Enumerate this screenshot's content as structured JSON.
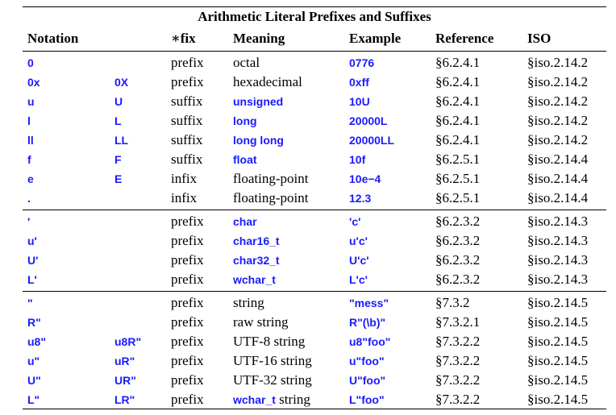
{
  "title": "Arithmetic Literal Prefixes and Suffixes",
  "headers": [
    "Notation",
    "",
    "∗fix",
    "Meaning",
    "Example",
    "Reference",
    "ISO"
  ],
  "groups": [
    [
      {
        "n1": "0",
        "n2": "",
        "fix": "prefix",
        "meaning": "octal",
        "meaning_code": "",
        "meaning_suffix": "",
        "example": "0776",
        "ref": "§6.2.4.1",
        "iso": "§iso.2.14.2"
      },
      {
        "n1": "0x",
        "n2": "0X",
        "fix": "prefix",
        "meaning": "hexadecimal",
        "meaning_code": "",
        "meaning_suffix": "",
        "example": "0xff",
        "ref": "§6.2.4.1",
        "iso": "§iso.2.14.2"
      },
      {
        "n1": "u",
        "n2": "U",
        "fix": "suffix",
        "meaning": "",
        "meaning_code": "unsigned",
        "meaning_suffix": "",
        "example": "10U",
        "ref": "§6.2.4.1",
        "iso": "§iso.2.14.2"
      },
      {
        "n1": "l",
        "n2": "L",
        "fix": "suffix",
        "meaning": "",
        "meaning_code": "long",
        "meaning_suffix": "",
        "example": "20000L",
        "ref": "§6.2.4.1",
        "iso": "§iso.2.14.2"
      },
      {
        "n1": "ll",
        "n2": "LL",
        "fix": "suffix",
        "meaning": "",
        "meaning_code": "long long",
        "meaning_suffix": "",
        "example": "20000LL",
        "ref": "§6.2.4.1",
        "iso": "§iso.2.14.2"
      },
      {
        "n1": "f",
        "n2": "F",
        "fix": "suffix",
        "meaning": "",
        "meaning_code": "float",
        "meaning_suffix": "",
        "example": "10f",
        "ref": "§6.2.5.1",
        "iso": "§iso.2.14.4"
      },
      {
        "n1": "e",
        "n2": "E",
        "fix": "infix",
        "meaning": "floating-point",
        "meaning_code": "",
        "meaning_suffix": "",
        "example": "10e−4",
        "ref": "§6.2.5.1",
        "iso": "§iso.2.14.4"
      },
      {
        "n1": ".",
        "n2": "",
        "fix": "infix",
        "meaning": "floating-point",
        "meaning_code": "",
        "meaning_suffix": "",
        "example": "12.3",
        "ref": "§6.2.5.1",
        "iso": "§iso.2.14.4"
      }
    ],
    [
      {
        "n1": "'",
        "n2": "",
        "fix": "prefix",
        "meaning": "",
        "meaning_code": "char",
        "meaning_suffix": "",
        "example": "'c'",
        "ref": "§6.2.3.2",
        "iso": "§iso.2.14.3"
      },
      {
        "n1": "u'",
        "n2": "",
        "fix": "prefix",
        "meaning": "",
        "meaning_code": "char16_t",
        "meaning_suffix": "",
        "example": "u'c'",
        "ref": "§6.2.3.2",
        "iso": "§iso.2.14.3"
      },
      {
        "n1": "U'",
        "n2": "",
        "fix": "prefix",
        "meaning": "",
        "meaning_code": "char32_t",
        "meaning_suffix": "",
        "example": "U'c'",
        "ref": "§6.2.3.2",
        "iso": "§iso.2.14.3"
      },
      {
        "n1": "L'",
        "n2": "",
        "fix": "prefix",
        "meaning": "",
        "meaning_code": "wchar_t",
        "meaning_suffix": "",
        "example": "L'c'",
        "ref": "§6.2.3.2",
        "iso": "§iso.2.14.3"
      }
    ],
    [
      {
        "n1": "\"",
        "n2": "",
        "fix": "prefix",
        "meaning": "string",
        "meaning_code": "",
        "meaning_suffix": "",
        "example": "\"mess\"",
        "ref": "§7.3.2",
        "iso": "§iso.2.14.5"
      },
      {
        "n1": "R\"",
        "n2": "",
        "fix": "prefix",
        "meaning": "raw string",
        "meaning_code": "",
        "meaning_suffix": "",
        "example": "R\"(\\b)\"",
        "ref": "§7.3.2.1",
        "iso": "§iso.2.14.5"
      },
      {
        "n1": "u8\"",
        "n2": "u8R\"",
        "fix": "prefix",
        "meaning": "UTF-8 string",
        "meaning_code": "",
        "meaning_suffix": "",
        "example": "u8\"foo\"",
        "ref": "§7.3.2.2",
        "iso": "§iso.2.14.5"
      },
      {
        "n1": "u\"",
        "n2": "uR\"",
        "fix": "prefix",
        "meaning": "UTF-16 string",
        "meaning_code": "",
        "meaning_suffix": "",
        "example": "u\"foo\"",
        "ref": "§7.3.2.2",
        "iso": "§iso.2.14.5"
      },
      {
        "n1": "U\"",
        "n2": "UR\"",
        "fix": "prefix",
        "meaning": "UTF-32 string",
        "meaning_code": "",
        "meaning_suffix": "",
        "example": "U\"foo\"",
        "ref": "§7.3.2.2",
        "iso": "§iso.2.14.5"
      },
      {
        "n1": "L\"",
        "n2": "LR\"",
        "fix": "prefix",
        "meaning": "",
        "meaning_code": "wchar_t",
        "meaning_suffix": " string",
        "example": "L\"foo\"",
        "ref": "§7.3.2.2",
        "iso": "§iso.2.14.5"
      }
    ]
  ],
  "colors": {
    "code": "#1a1aff",
    "text": "#000000"
  }
}
